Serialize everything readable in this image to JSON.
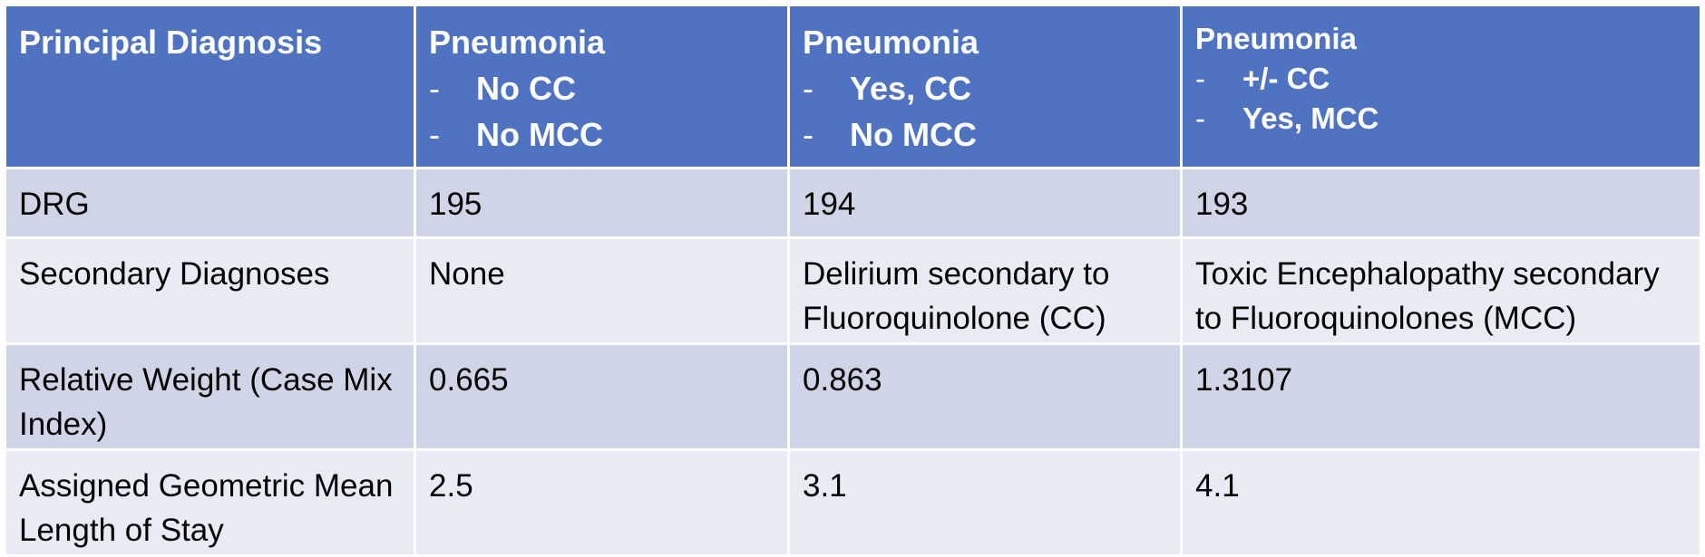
{
  "header": {
    "principal_label": "Principal Diagnosis",
    "columns": [
      {
        "title": "Pneumonia",
        "items": [
          "No CC",
          "No MCC"
        ]
      },
      {
        "title": "Pneumonia",
        "items": [
          "Yes, CC",
          "No MCC"
        ]
      },
      {
        "title": "Pneumonia",
        "items": [
          "+/- CC",
          "Yes, MCC"
        ]
      }
    ],
    "bullet": "-"
  },
  "rows": [
    {
      "label": "DRG",
      "values": [
        "195",
        "194",
        "193"
      ]
    },
    {
      "label": "Secondary Diagnoses",
      "values": [
        "None",
        "Delirium secondary to Fluoroquinolone (CC)",
        "Toxic Encephalopathy secondary to Fluoroquinolones (MCC)"
      ]
    },
    {
      "label": "Relative Weight (Case Mix Index)",
      "values": [
        "0.665",
        "0.863",
        "1.3107"
      ]
    },
    {
      "label": "Assigned Geometric Mean Length of Stay",
      "values": [
        "2.5",
        "3.1",
        "4.1"
      ]
    }
  ],
  "colors": {
    "header_bg": "#4f73c1",
    "row_odd_bg": "#cfd5e6",
    "row_even_bg": "#e8ebf4"
  }
}
